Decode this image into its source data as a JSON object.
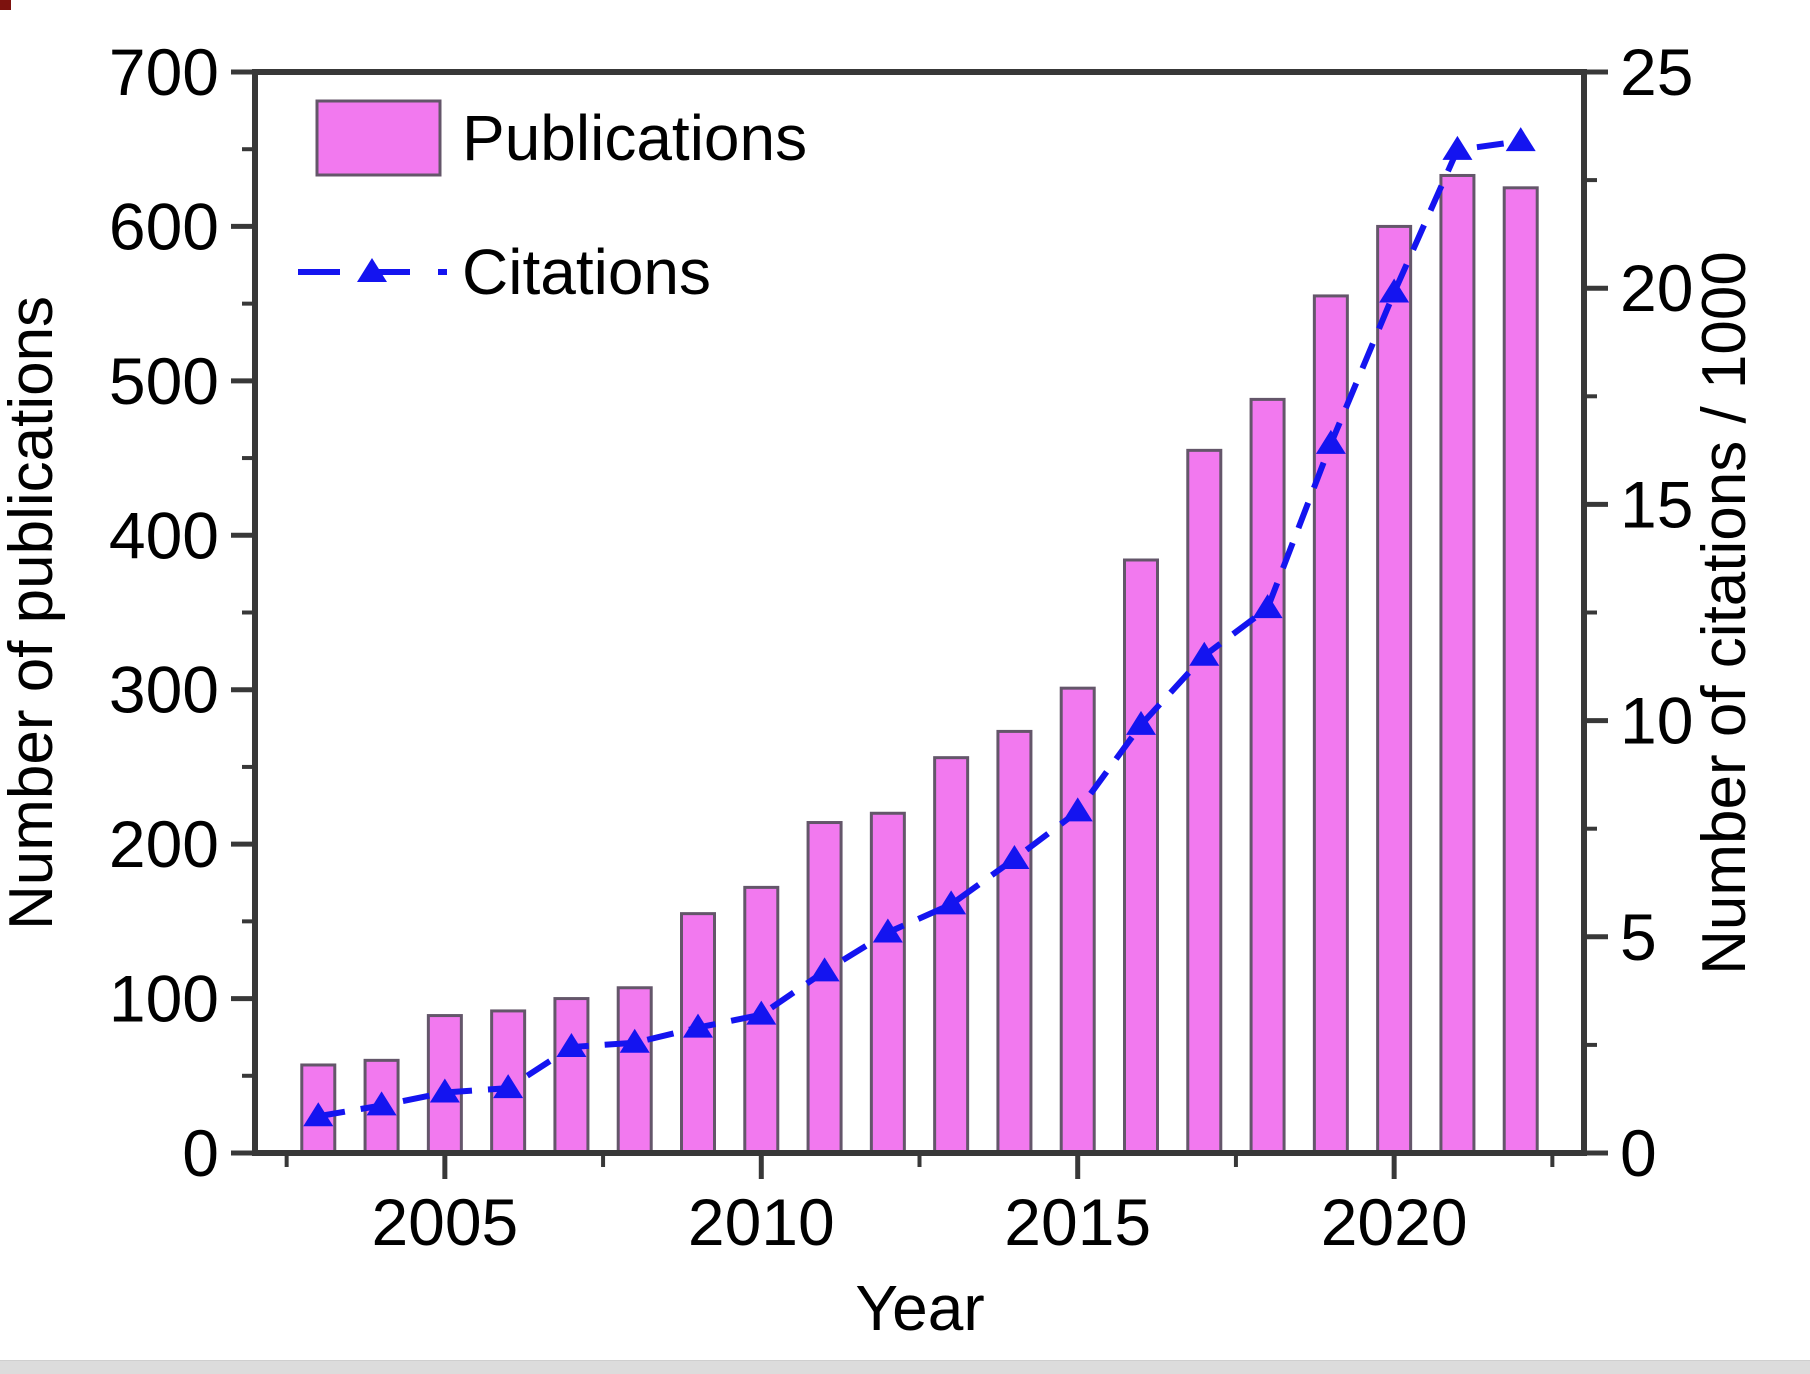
{
  "chart_data": {
    "type": "bar",
    "title": "",
    "xlabel": "Year",
    "ylabel_left": "Number of publications",
    "ylabel_right": "Number of citations / 1000",
    "x_axis_range": [
      2002,
      2023
    ],
    "ylim_left": [
      0,
      700
    ],
    "ylim_right": [
      0,
      25
    ],
    "grid": false,
    "legend_position": "top-left-inside",
    "categories": [
      2003,
      2004,
      2005,
      2006,
      2007,
      2008,
      2009,
      2010,
      2011,
      2012,
      2013,
      2014,
      2015,
      2016,
      2017,
      2018,
      2019,
      2020,
      2021,
      2022
    ],
    "series": [
      {
        "name": "Publications",
        "type": "bar",
        "axis": "left",
        "values": [
          57,
          60,
          89,
          92,
          100,
          107,
          155,
          172,
          214,
          220,
          256,
          273,
          301,
          384,
          455,
          488,
          555,
          600,
          633,
          625
        ]
      },
      {
        "name": "Citations",
        "type": "line-dashed-triangle-markers",
        "axis": "right",
        "values": [
          0.85,
          1.1,
          1.4,
          1.5,
          2.45,
          2.55,
          2.9,
          3.2,
          4.2,
          5.1,
          5.75,
          6.8,
          7.9,
          9.9,
          11.5,
          12.6,
          16.4,
          19.9,
          23.2,
          23.4
        ]
      }
    ],
    "left_major_ticks": [
      0,
      100,
      200,
      300,
      400,
      500,
      600,
      700
    ],
    "left_minor_step": 50,
    "right_major_ticks": [
      0,
      5,
      10,
      15,
      20,
      25
    ],
    "right_minor_step": 2.5,
    "x_major_ticks": [
      2005,
      2010,
      2015,
      2020
    ],
    "x_minor_ticks": [
      2002.5,
      2007.5,
      2012.5,
      2017.5,
      2022.5
    ]
  },
  "legend": {
    "publications_label": "Publications",
    "citations_label": "Citations"
  },
  "colors": {
    "bar_fill": "#F279EF",
    "bar_stroke": "#64566A",
    "line_blue": "#1414F0",
    "frame": "#383838",
    "text": "#000000",
    "corner_dot": "#7d120e",
    "bottom_strip": "#dcdcdc"
  }
}
